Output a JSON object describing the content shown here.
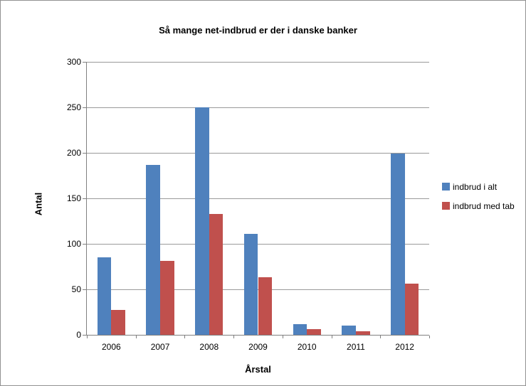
{
  "window": {
    "background": "#ffffff",
    "border_color": "#929292"
  },
  "chart_data": {
    "type": "bar",
    "title": "Så mange net-indbrud er der i danske banker",
    "xlabel": "Årstal",
    "ylabel": "Antal",
    "categories": [
      "2006",
      "2007",
      "2008",
      "2009",
      "2010",
      "2011",
      "2012"
    ],
    "series": [
      {
        "name": "indbrud i alt",
        "color": "#4F81BD",
        "values": [
          85,
          187,
          250,
          111,
          12,
          10,
          199
        ]
      },
      {
        "name": "indbrud med tab",
        "color": "#C0504D",
        "values": [
          27,
          81,
          133,
          63,
          6,
          4,
          56
        ]
      }
    ],
    "ylim": [
      0,
      300
    ],
    "ytick_step": 50,
    "yticks": [
      0,
      50,
      100,
      150,
      200,
      250,
      300
    ],
    "grid": true,
    "legend_position": "right",
    "gridline_color": "#9a9a9a",
    "axis_color": "#808080",
    "text_color": "#000000"
  }
}
